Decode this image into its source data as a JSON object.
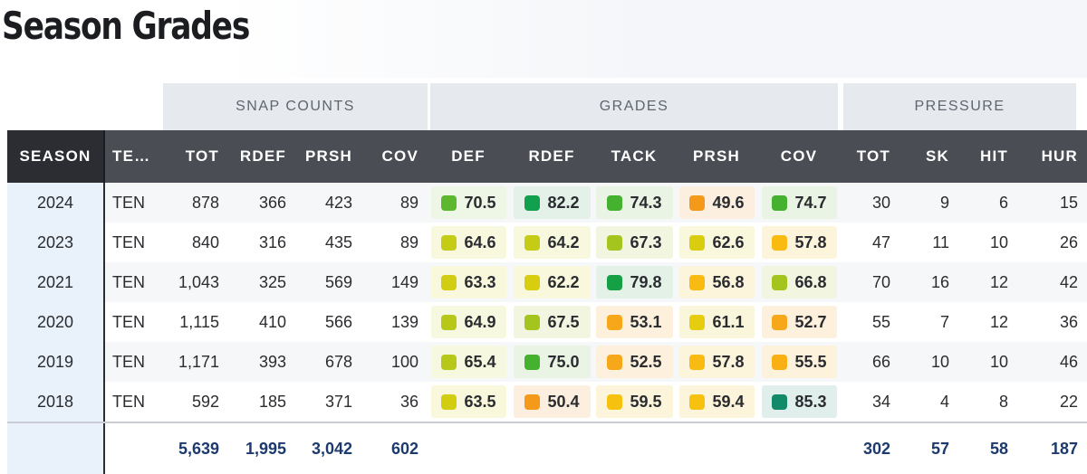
{
  "title": "Season Grades",
  "groups": [
    "SNAP COUNTS",
    "GRADES",
    "PRESSURE"
  ],
  "columns": [
    "SEASON",
    "TE…",
    "TOT",
    "RDEF",
    "PRSH",
    "COV",
    "DEF",
    "RDEF",
    "TACK",
    "PRSH",
    "COV",
    "TOT",
    "SK",
    "HIT",
    "HUR"
  ],
  "rows": [
    {
      "season": "2024",
      "team": "TEN",
      "snaps": [
        "878",
        "366",
        "423",
        "89"
      ],
      "grades": [
        {
          "v": "70.5",
          "c": "#5cb82e",
          "bg": "#eef6e6"
        },
        {
          "v": "82.2",
          "c": "#11a04e",
          "bg": "#e3f1e8"
        },
        {
          "v": "74.3",
          "c": "#44b22f",
          "bg": "#e9f4e4"
        },
        {
          "v": "49.6",
          "c": "#f4991a",
          "bg": "#fcefe0"
        },
        {
          "v": "74.7",
          "c": "#44b22f",
          "bg": "#e9f4e4"
        }
      ],
      "pressure": [
        "30",
        "9",
        "6",
        "15"
      ]
    },
    {
      "season": "2023",
      "team": "TEN",
      "snaps": [
        "840",
        "316",
        "435",
        "89"
      ],
      "grades": [
        {
          "v": "64.6",
          "c": "#c4cc16",
          "bg": "#f8f8df"
        },
        {
          "v": "64.2",
          "c": "#c4cc16",
          "bg": "#f8f8df"
        },
        {
          "v": "67.3",
          "c": "#a4c41e",
          "bg": "#f2f6e0"
        },
        {
          "v": "62.6",
          "c": "#d8cd0e",
          "bg": "#f9f7dc"
        },
        {
          "v": "57.8",
          "c": "#f9bb12",
          "bg": "#fdf4dc"
        }
      ],
      "pressure": [
        "47",
        "11",
        "10",
        "26"
      ]
    },
    {
      "season": "2021",
      "team": "TEN",
      "snaps": [
        "1,043",
        "325",
        "569",
        "149"
      ],
      "grades": [
        {
          "v": "63.3",
          "c": "#d2cd10",
          "bg": "#f9f8dc"
        },
        {
          "v": "62.2",
          "c": "#d8cd0e",
          "bg": "#f9f7dc"
        },
        {
          "v": "79.8",
          "c": "#16a045",
          "bg": "#e3f1e7"
        },
        {
          "v": "56.8",
          "c": "#f9bb12",
          "bg": "#fdf4dc"
        },
        {
          "v": "66.8",
          "c": "#a4c41e",
          "bg": "#f2f6e0"
        }
      ],
      "pressure": [
        "70",
        "16",
        "12",
        "42"
      ]
    },
    {
      "season": "2020",
      "team": "TEN",
      "snaps": [
        "1,115",
        "410",
        "566",
        "139"
      ],
      "grades": [
        {
          "v": "64.9",
          "c": "#b8c818",
          "bg": "#f6f8df"
        },
        {
          "v": "67.5",
          "c": "#a4c41e",
          "bg": "#f2f6e0"
        },
        {
          "v": "53.1",
          "c": "#f6a81a",
          "bg": "#fdf1dd"
        },
        {
          "v": "61.1",
          "c": "#e6cd0f",
          "bg": "#faf6db"
        },
        {
          "v": "52.7",
          "c": "#f6a81a",
          "bg": "#fdf1dd"
        }
      ],
      "pressure": [
        "55",
        "7",
        "12",
        "36"
      ]
    },
    {
      "season": "2019",
      "team": "TEN",
      "snaps": [
        "1,171",
        "393",
        "678",
        "100"
      ],
      "grades": [
        {
          "v": "65.4",
          "c": "#b8c818",
          "bg": "#f6f8df"
        },
        {
          "v": "75.0",
          "c": "#44b22f",
          "bg": "#e9f4e4"
        },
        {
          "v": "52.5",
          "c": "#f6a81a",
          "bg": "#fdf1dd"
        },
        {
          "v": "57.8",
          "c": "#f9bb12",
          "bg": "#fdf4dc"
        },
        {
          "v": "55.5",
          "c": "#f9b014",
          "bg": "#fdf3dc"
        }
      ],
      "pressure": [
        "66",
        "10",
        "10",
        "46"
      ]
    },
    {
      "season": "2018",
      "team": "TEN",
      "snaps": [
        "592",
        "185",
        "371",
        "36"
      ],
      "grades": [
        {
          "v": "63.5",
          "c": "#d2cd10",
          "bg": "#f9f8dc"
        },
        {
          "v": "50.4",
          "c": "#f4991a",
          "bg": "#fcefe0"
        },
        {
          "v": "59.5",
          "c": "#f6c20f",
          "bg": "#fdf5db"
        },
        {
          "v": "59.4",
          "c": "#f6c20f",
          "bg": "#fdf5db"
        },
        {
          "v": "85.3",
          "c": "#128a6a",
          "bg": "#e0efeb"
        }
      ],
      "pressure": [
        "34",
        "4",
        "8",
        "22"
      ]
    }
  ],
  "totals": {
    "snaps": [
      "5,639",
      "1,995",
      "3,042",
      "602"
    ],
    "pressure": [
      "302",
      "57",
      "58",
      "187"
    ]
  }
}
